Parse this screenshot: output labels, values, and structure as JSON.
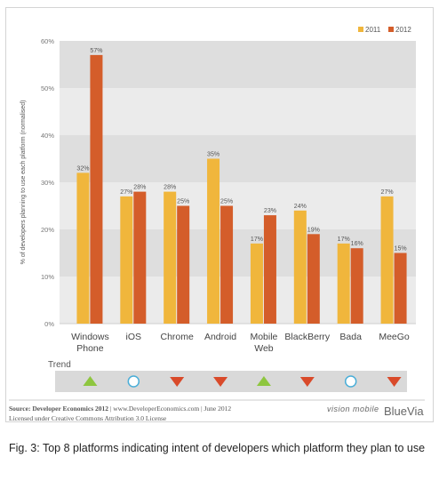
{
  "chart_data": {
    "type": "bar",
    "categories": [
      "Windows\nPhone",
      "iOS",
      "Chrome",
      "Android",
      "Mobile\nWeb",
      "BlackBerry",
      "Bada",
      "MeeGo"
    ],
    "series": [
      {
        "name": "2011",
        "color": "#f0b63c",
        "values": [
          32,
          27,
          28,
          35,
          17,
          24,
          17,
          27
        ]
      },
      {
        "name": "2012",
        "color": "#d45d2a",
        "values": [
          57,
          28,
          25,
          25,
          23,
          19,
          16,
          15
        ]
      }
    ],
    "ylabel": "% of developers planning to use each platform (normalised)",
    "ylim": [
      0,
      60
    ],
    "yticks": [
      "0%",
      "10%",
      "20%",
      "30%",
      "40%",
      "50%",
      "60%"
    ],
    "legend_position": "top-right",
    "trend_label": "Trend",
    "trend": [
      "up",
      "flat",
      "down",
      "down",
      "up",
      "down",
      "flat",
      "down"
    ],
    "trend_colors": {
      "up": "#8ec63f",
      "flat": "#4aaed8",
      "down": "#d94a2a"
    }
  },
  "source": {
    "bold": "Source: Developer Economics 2012",
    "rest": " | www.DeveloperEconomics.com | June 2012",
    "license": "Licensed under Creative Commons Attribution 3.0 License"
  },
  "logos": {
    "vision": "vision mobile",
    "bluevia": "BlueVia"
  },
  "caption": "Fig. 3: Top 8 platforms indicating intent of developers which platform they plan to use"
}
